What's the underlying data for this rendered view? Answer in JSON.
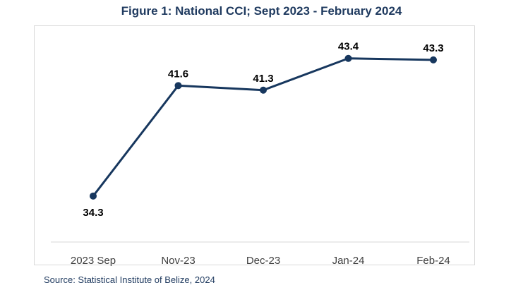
{
  "chart_data": {
    "type": "line",
    "title": "Figure 1: National CCI; Sept 2023 - February 2024",
    "categories": [
      "2023 Sep",
      "Nov-23",
      "Dec-23",
      "Jan-24",
      "Feb-24"
    ],
    "series": [
      {
        "values": [
          34.3,
          41.6,
          41.3,
          43.4,
          43.3
        ]
      }
    ],
    "data_labels": [
      "34.3",
      "41.6",
      "41.3",
      "43.4",
      "43.3"
    ],
    "xlabel": "",
    "ylabel": "",
    "ylim": [
      30,
      46
    ],
    "grid": false,
    "legend": "none",
    "line_color": "#17375e",
    "source": "Source: Statistical Institute of Belize, 2024"
  }
}
